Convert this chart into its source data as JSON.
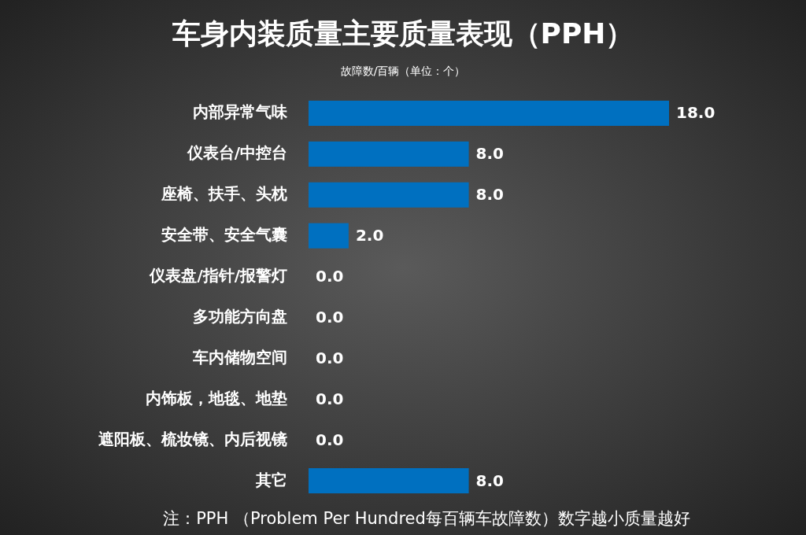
{
  "chart_data": {
    "type": "bar",
    "orientation": "horizontal",
    "title": "车身内装质量主要质量表现（PPH）",
    "subtitle": "故障数/百辆（单位：个）",
    "categories": [
      "内部异常气味",
      "仪表台/中控台",
      "座椅、扶手、头枕",
      "安全带、安全气囊",
      "仪表盘/指针/报警灯",
      "多功能方向盘",
      "车内储物空间",
      "内饰板，地毯、地垫",
      "遮阳板、梳妆镜、内后视镜",
      "其它"
    ],
    "values": [
      18,
      8,
      8,
      2,
      0,
      0,
      0,
      0,
      0,
      8
    ],
    "value_labels": [
      "18.0",
      "8.0",
      "8.0",
      "2.0",
      "0.0",
      "0.0",
      "0.0",
      "0.0",
      "0.0",
      "8.0"
    ],
    "color": "#0070c0",
    "annotations": [
      "注：PPH （Problem Per Hundred每百辆车故障数）数字越小质量越好"
    ]
  }
}
